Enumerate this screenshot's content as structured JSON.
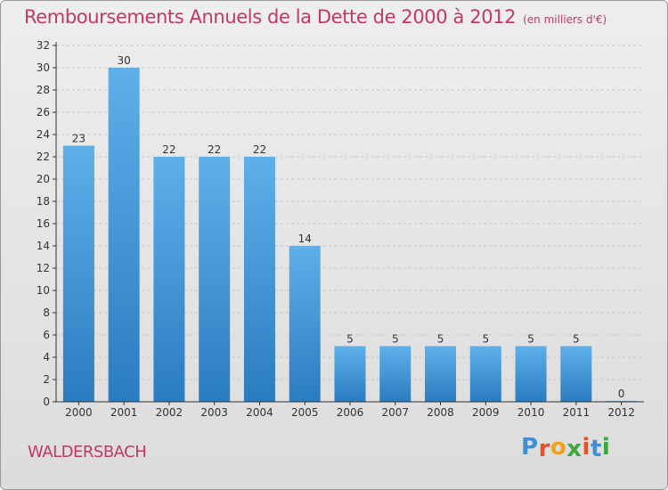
{
  "title": "Remboursements Annuels de la Dette de 2000 à 2012",
  "unit_note": "(en milliers d'€)",
  "commune": "WALDERSBACH",
  "logo": {
    "text": "Proxiti",
    "letter_colors": [
      "#3d8fd6",
      "#e8512a",
      "#f0a21a",
      "#3aa83a",
      "#e8512a",
      "#3d8fd6",
      "#3aa83a"
    ]
  },
  "colors": {
    "title": "#c0386a",
    "bar_light": "#5eb0ea",
    "bar_dark": "#2a7cc0",
    "grid": "#c8c8c8",
    "axis": "#333333"
  },
  "chart_data": {
    "type": "bar",
    "categories": [
      "2000",
      "2001",
      "2002",
      "2003",
      "2004",
      "2005",
      "2006",
      "2007",
      "2008",
      "2009",
      "2010",
      "2011",
      "2012"
    ],
    "values": [
      23,
      30,
      22,
      22,
      22,
      14,
      5,
      5,
      5,
      5,
      5,
      5,
      0
    ],
    "ylim": [
      0,
      32
    ],
    "yticks": [
      0,
      2,
      4,
      6,
      8,
      10,
      12,
      14,
      16,
      18,
      20,
      22,
      24,
      26,
      28,
      30,
      32
    ],
    "grid": true,
    "title": "Remboursements Annuels de la Dette de 2000 à 2012",
    "xlabel": "",
    "ylabel": ""
  }
}
